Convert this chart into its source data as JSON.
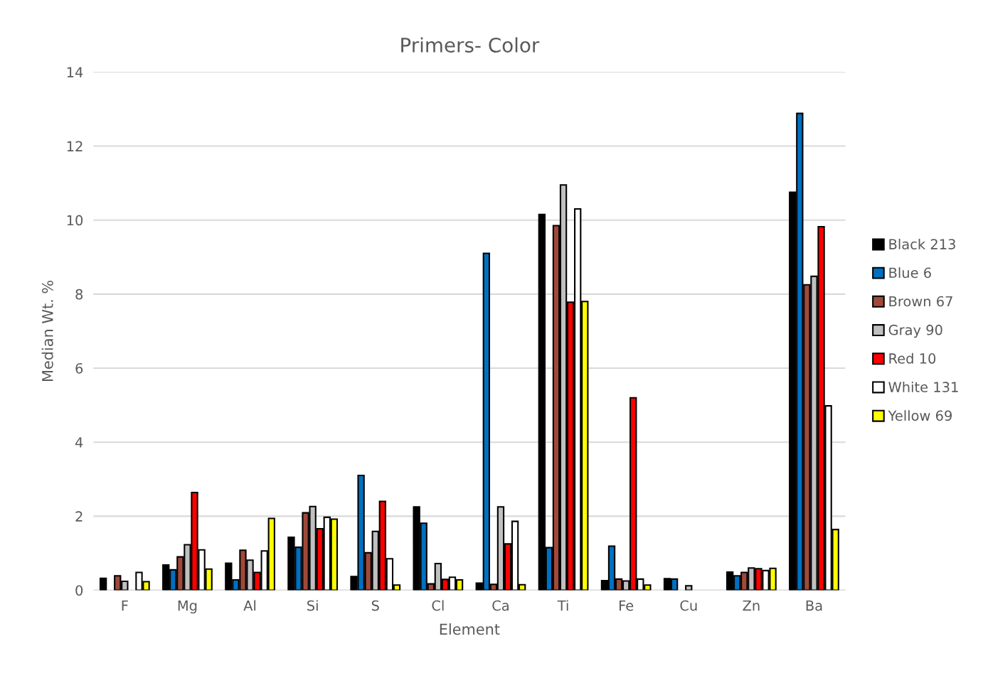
{
  "chart_data": {
    "type": "bar",
    "title": "Primers- Color",
    "xlabel": "Element",
    "ylabel": "Median Wt. %",
    "categories": [
      "F",
      "Mg",
      "Al",
      "Si",
      "S",
      "Cl",
      "Ca",
      "Ti",
      "Fe",
      "Cu",
      "Zn",
      "Ba"
    ],
    "series": [
      {
        "name": "Black 213",
        "color": "#000000",
        "values": [
          0.32,
          0.68,
          0.73,
          1.43,
          0.37,
          2.25,
          0.19,
          10.15,
          0.26,
          0.31,
          0.49,
          10.75
        ]
      },
      {
        "name": "Blue 6",
        "color": "#0070c0",
        "values": [
          null,
          0.55,
          0.28,
          1.16,
          3.1,
          1.81,
          9.1,
          1.15,
          1.19,
          0.3,
          0.39,
          12.88
        ]
      },
      {
        "name": "Brown 67",
        "color": "#a0493a",
        "values": [
          0.39,
          0.9,
          1.08,
          2.09,
          1.01,
          0.17,
          0.16,
          9.85,
          0.3,
          null,
          0.48,
          8.25
        ]
      },
      {
        "name": "Gray 90",
        "color": "#c0c0c0",
        "values": [
          0.24,
          1.23,
          0.81,
          2.26,
          1.59,
          0.72,
          2.25,
          10.95,
          0.25,
          0.12,
          0.6,
          8.48
        ]
      },
      {
        "name": "Red 10",
        "color": "#ff0000",
        "values": [
          null,
          2.64,
          0.48,
          1.66,
          2.4,
          0.29,
          1.25,
          7.78,
          5.2,
          null,
          0.58,
          9.82
        ]
      },
      {
        "name": "White 131",
        "color": "#ffffff",
        "values": [
          0.48,
          1.09,
          1.06,
          1.97,
          0.85,
          0.35,
          1.86,
          10.3,
          0.3,
          null,
          0.53,
          4.98
        ]
      },
      {
        "name": "Yellow 69",
        "color": "#ffff00",
        "values": [
          0.23,
          0.57,
          1.94,
          1.92,
          0.14,
          0.28,
          0.15,
          7.8,
          0.14,
          null,
          0.59,
          1.64
        ]
      }
    ],
    "ylim": [
      0,
      14
    ],
    "yticks": [
      0,
      2,
      4,
      6,
      8,
      10,
      12,
      14
    ],
    "grid": "y",
    "legend": "right"
  }
}
